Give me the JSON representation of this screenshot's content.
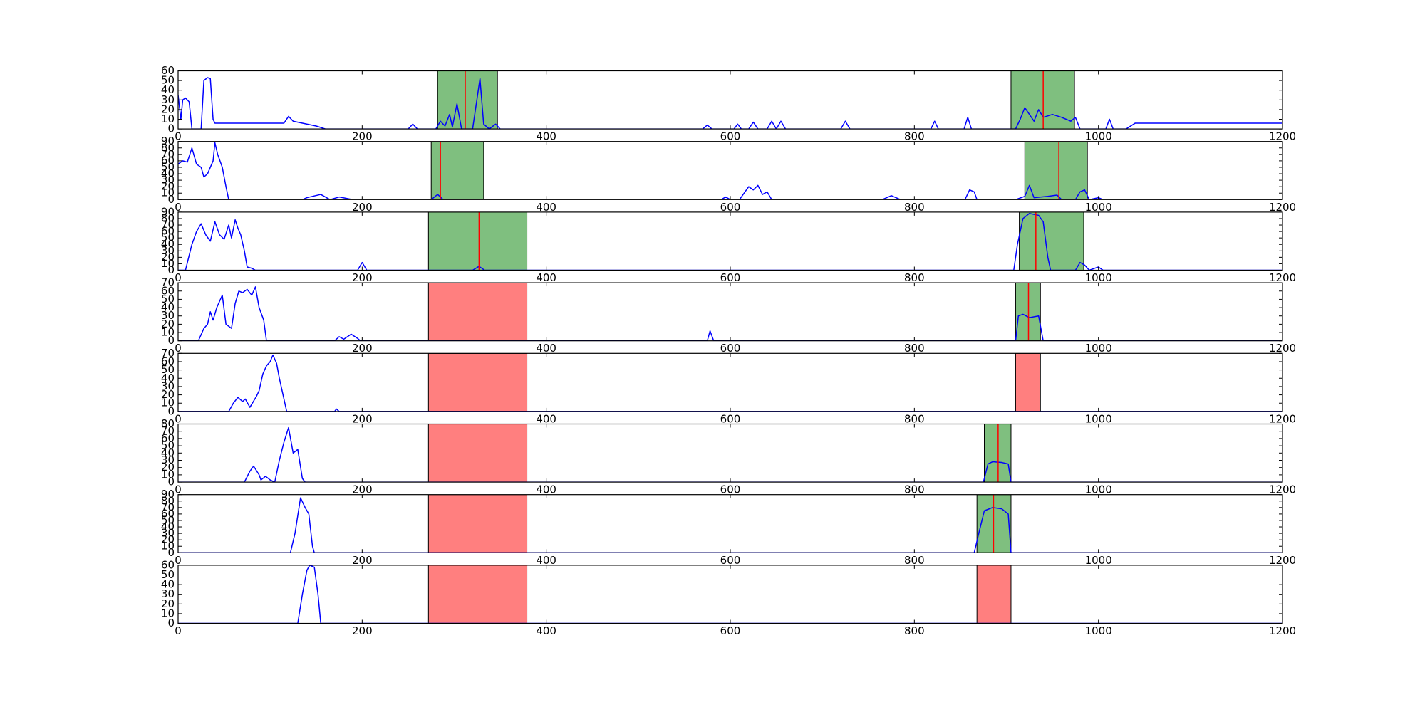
{
  "chart_data": [
    {
      "type": "line",
      "color": "#0000ff",
      "x": [
        0,
        3,
        5,
        8,
        12,
        15,
        25,
        28,
        32,
        35,
        38,
        40,
        100,
        115,
        120,
        125,
        130,
        150,
        160,
        250,
        255,
        260,
        280,
        285,
        290,
        295,
        298,
        303,
        308,
        320,
        328,
        332,
        338,
        345,
        350,
        570,
        575,
        580,
        604,
        608,
        612,
        620,
        625,
        630,
        640,
        645,
        650,
        655,
        660,
        720,
        725,
        730,
        818,
        822,
        826,
        854,
        858,
        862,
        910,
        915,
        920,
        925,
        930,
        935,
        940,
        950,
        960,
        970,
        975,
        980,
        1008,
        1012,
        1016,
        1030,
        1040,
        1100,
        1200
      ],
      "values": [
        35,
        10,
        30,
        32,
        28,
        0,
        0,
        50,
        53,
        52,
        10,
        6,
        6,
        6,
        13,
        8,
        7,
        3,
        0,
        0,
        5,
        0,
        0,
        8,
        3,
        15,
        2,
        26,
        0,
        0,
        52,
        5,
        0,
        5,
        0,
        0,
        4,
        0,
        0,
        5,
        0,
        0,
        7,
        0,
        0,
        8,
        0,
        8,
        0,
        0,
        8,
        0,
        0,
        8,
        0,
        0,
        12,
        0,
        0,
        10,
        22,
        15,
        8,
        20,
        12,
        15,
        12,
        8,
        12,
        0,
        0,
        10,
        0,
        0,
        6,
        6,
        6
      ],
      "xlim": [
        0,
        1200
      ],
      "xticks": [
        0,
        200,
        400,
        600,
        800,
        1000,
        1200
      ],
      "ylim": [
        0,
        60
      ],
      "yticks": [
        0,
        10,
        20,
        30,
        40,
        50,
        60
      ],
      "spans": [
        {
          "start": 282,
          "end": 347,
          "color": "#7fbf7f"
        },
        {
          "start": 905,
          "end": 974,
          "color": "#7fbf7f"
        }
      ],
      "vlines": [
        {
          "x": 312,
          "color": "#ff0000"
        },
        {
          "x": 940,
          "color": "#ff0000"
        }
      ]
    },
    {
      "type": "line",
      "color": "#0000ff",
      "x": [
        0,
        5,
        10,
        15,
        20,
        25,
        28,
        32,
        38,
        40,
        43,
        48,
        52,
        55,
        135,
        140,
        155,
        165,
        175,
        190,
        275,
        282,
        288,
        590,
        595,
        600,
        610,
        615,
        620,
        625,
        630,
        635,
        640,
        645,
        765,
        775,
        785,
        855,
        860,
        865,
        868,
        910,
        920,
        925,
        930,
        945,
        955,
        960,
        975,
        980,
        985,
        990,
        1000,
        1005,
        1200
      ],
      "values": [
        55,
        60,
        58,
        80,
        55,
        50,
        35,
        40,
        60,
        88,
        70,
        50,
        20,
        0,
        0,
        3,
        8,
        0,
        4,
        0,
        0,
        8,
        0,
        0,
        4,
        0,
        0,
        10,
        20,
        15,
        22,
        8,
        12,
        0,
        0,
        6,
        0,
        0,
        15,
        12,
        0,
        0,
        5,
        22,
        3,
        5,
        7,
        0,
        0,
        12,
        15,
        0,
        3,
        0,
        0
      ],
      "xlim": [
        0,
        1200
      ],
      "xticks": [
        0,
        200,
        400,
        600,
        800,
        1000,
        1200
      ],
      "ylim": [
        0,
        90
      ],
      "yticks": [
        0,
        10,
        20,
        30,
        40,
        50,
        60,
        70,
        80,
        90
      ],
      "spans": [
        {
          "start": 275,
          "end": 332,
          "color": "#7fbf7f"
        },
        {
          "start": 920,
          "end": 988,
          "color": "#7fbf7f"
        }
      ],
      "vlines": [
        {
          "x": 285,
          "color": "#ff0000"
        },
        {
          "x": 957,
          "color": "#ff0000"
        }
      ]
    },
    {
      "type": "line",
      "color": "#0000ff",
      "x": [
        0,
        8,
        15,
        20,
        25,
        30,
        35,
        40,
        45,
        50,
        55,
        58,
        62,
        65,
        68,
        72,
        75,
        80,
        84,
        195,
        200,
        205,
        320,
        327,
        333,
        908,
        912,
        918,
        925,
        935,
        940,
        945,
        948,
        975,
        980,
        985,
        990,
        1000,
        1005,
        1200
      ],
      "values": [
        0,
        0,
        40,
        60,
        72,
        55,
        45,
        75,
        55,
        48,
        70,
        50,
        78,
        65,
        55,
        30,
        5,
        3,
        0,
        0,
        12,
        0,
        0,
        6,
        0,
        0,
        40,
        80,
        88,
        85,
        75,
        20,
        0,
        0,
        12,
        8,
        0,
        5,
        0,
        0
      ],
      "xlim": [
        0,
        1200
      ],
      "xticks": [
        0,
        200,
        400,
        600,
        800,
        1000,
        1200
      ],
      "ylim": [
        0,
        90
      ],
      "yticks": [
        0,
        10,
        20,
        30,
        40,
        50,
        60,
        70,
        80,
        90
      ],
      "spans": [
        {
          "start": 272,
          "end": 379,
          "color": "#7fbf7f"
        },
        {
          "start": 914,
          "end": 984,
          "color": "#7fbf7f"
        }
      ],
      "vlines": [
        {
          "x": 327,
          "color": "#ff0000"
        },
        {
          "x": 932,
          "color": "#ff0000"
        }
      ]
    },
    {
      "type": "line",
      "color": "#0000ff",
      "x": [
        0,
        22,
        28,
        32,
        35,
        38,
        42,
        48,
        52,
        58,
        62,
        66,
        70,
        75,
        80,
        84,
        88,
        93,
        96,
        170,
        175,
        180,
        188,
        195,
        198,
        575,
        578,
        582,
        910,
        913,
        918,
        925,
        935,
        940,
        1200
      ],
      "values": [
        0,
        0,
        15,
        20,
        35,
        25,
        40,
        55,
        20,
        15,
        45,
        60,
        58,
        62,
        55,
        65,
        40,
        25,
        0,
        0,
        5,
        2,
        8,
        3,
        0,
        0,
        12,
        0,
        0,
        30,
        32,
        28,
        30,
        0,
        0
      ],
      "xlim": [
        0,
        1200
      ],
      "xticks": [
        0,
        200,
        400,
        600,
        800,
        1000,
        1200
      ],
      "ylim": [
        0,
        70
      ],
      "yticks": [
        0,
        10,
        20,
        30,
        40,
        50,
        60,
        70
      ],
      "spans": [
        {
          "start": 272,
          "end": 379,
          "color": "#ff7f7f"
        },
        {
          "start": 910,
          "end": 937,
          "color": "#7fbf7f"
        }
      ],
      "vlines": [
        {
          "x": 924,
          "color": "#ff0000"
        }
      ]
    },
    {
      "type": "line",
      "color": "#0000ff",
      "x": [
        0,
        55,
        60,
        65,
        70,
        73,
        78,
        85,
        88,
        92,
        96,
        100,
        103,
        107,
        110,
        115,
        118,
        170,
        172,
        175,
        1200
      ],
      "values": [
        0,
        0,
        10,
        17,
        12,
        15,
        5,
        18,
        25,
        45,
        55,
        60,
        68,
        58,
        40,
        15,
        0,
        0,
        3,
        0,
        0
      ],
      "xlim": [
        0,
        1200
      ],
      "xticks": [
        0,
        200,
        400,
        600,
        800,
        1000,
        1200
      ],
      "ylim": [
        0,
        70
      ],
      "yticks": [
        0,
        10,
        20,
        30,
        40,
        50,
        60,
        70
      ],
      "spans": [
        {
          "start": 272,
          "end": 379,
          "color": "#ff7f7f"
        },
        {
          "start": 910,
          "end": 937,
          "color": "#ff7f7f"
        }
      ],
      "vlines": []
    },
    {
      "type": "line",
      "color": "#0000ff",
      "x": [
        0,
        72,
        78,
        82,
        88,
        90,
        95,
        100,
        105,
        110,
        115,
        120,
        125,
        130,
        135,
        138,
        875,
        880,
        885,
        895,
        902,
        905,
        1200
      ],
      "values": [
        0,
        0,
        15,
        22,
        10,
        3,
        8,
        3,
        0,
        30,
        55,
        75,
        40,
        45,
        5,
        0,
        0,
        25,
        28,
        27,
        25,
        0,
        0
      ],
      "xlim": [
        0,
        1200
      ],
      "xticks": [
        0,
        200,
        400,
        600,
        800,
        1000,
        1200
      ],
      "ylim": [
        0,
        80
      ],
      "yticks": [
        0,
        10,
        20,
        30,
        40,
        50,
        60,
        70,
        80
      ],
      "spans": [
        {
          "start": 272,
          "end": 379,
          "color": "#ff7f7f"
        },
        {
          "start": 876,
          "end": 905,
          "color": "#7fbf7f"
        }
      ],
      "vlines": [
        {
          "x": 891,
          "color": "#ff0000"
        }
      ]
    },
    {
      "type": "line",
      "color": "#0000ff",
      "x": [
        0,
        122,
        127,
        133,
        138,
        142,
        146,
        148,
        865,
        870,
        876,
        885,
        895,
        902,
        905,
        1200
      ],
      "values": [
        0,
        0,
        30,
        85,
        70,
        60,
        10,
        0,
        0,
        30,
        65,
        70,
        68,
        60,
        0,
        0
      ],
      "xlim": [
        0,
        1200
      ],
      "xticks": [
        0,
        200,
        400,
        600,
        800,
        1000,
        1200
      ],
      "ylim": [
        0,
        90
      ],
      "yticks": [
        0,
        10,
        20,
        30,
        40,
        50,
        60,
        70,
        80,
        90
      ],
      "spans": [
        {
          "start": 272,
          "end": 379,
          "color": "#ff7f7f"
        },
        {
          "start": 868,
          "end": 905,
          "color": "#7fbf7f"
        }
      ],
      "vlines": [
        {
          "x": 886,
          "color": "#ff0000"
        }
      ]
    },
    {
      "type": "line",
      "color": "#0000ff",
      "x": [
        0,
        130,
        135,
        140,
        143,
        148,
        152,
        155,
        1200
      ],
      "values": [
        0,
        0,
        30,
        55,
        60,
        58,
        30,
        0,
        0
      ],
      "xlim": [
        0,
        1200
      ],
      "xticks": [
        0,
        200,
        400,
        600,
        800,
        1000,
        1200
      ],
      "ylim": [
        0,
        60
      ],
      "yticks": [
        0,
        10,
        20,
        30,
        40,
        50,
        60
      ],
      "spans": [
        {
          "start": 272,
          "end": 379,
          "color": "#ff7f7f"
        },
        {
          "start": 868,
          "end": 905,
          "color": "#ff7f7f"
        }
      ],
      "vlines": []
    }
  ]
}
